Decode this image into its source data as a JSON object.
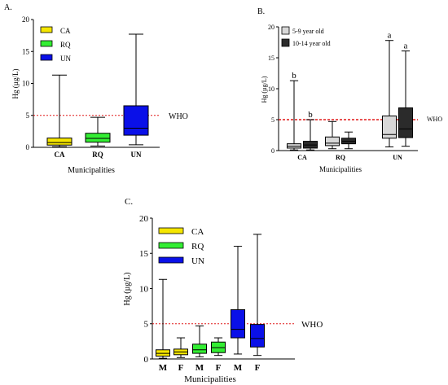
{
  "who_label": "WHO",
  "who_level": 5,
  "chart_data": [
    {
      "type": "box",
      "panel_label": "A.",
      "ylabel": "Hg (µg/L)",
      "xlabel": "Municipalities",
      "ylim": [
        0,
        20
      ],
      "yticks": [
        "0",
        "5",
        "10",
        "15",
        "20"
      ],
      "categories": [
        "CA",
        "RQ",
        "UN"
      ],
      "legend": [
        "CA",
        "RQ",
        "UN"
      ],
      "series": [
        {
          "color": "#f5e600",
          "boxes": [
            {
              "min": 0.1,
              "q1": 0.35,
              "median": 0.75,
              "q3": 1.45,
              "max": 11.3
            }
          ]
        },
        {
          "color": "#33ee33",
          "boxes": [
            {
              "min": 0.2,
              "q1": 0.8,
              "median": 1.4,
              "q3": 2.2,
              "max": 4.7
            }
          ]
        },
        {
          "color": "#0a10e8",
          "boxes": [
            {
              "min": 0.4,
              "q1": 1.9,
              "median": 3.0,
              "q3": 6.5,
              "max": 17.7
            }
          ]
        }
      ]
    },
    {
      "type": "box",
      "panel_label": "B.",
      "ylabel": "Hg (µg/L)",
      "xlabel": "Municipalities",
      "ylim": [
        0,
        20
      ],
      "yticks": [
        "0",
        "5",
        "10",
        "15",
        "20"
      ],
      "categories": [
        "CA",
        "RQ",
        "UN"
      ],
      "legend": [
        "5-9 year old",
        "10-14 year old"
      ],
      "series": [
        {
          "color": "#d8d8d8",
          "boxes": [
            {
              "min": 0.1,
              "q1": 0.4,
              "median": 0.7,
              "q3": 1.1,
              "max": 11.3,
              "letter": "b"
            },
            {
              "min": 0.3,
              "q1": 0.8,
              "median": 1.2,
              "q3": 2.2,
              "max": 4.7
            },
            {
              "min": 0.6,
              "q1": 2.0,
              "median": 2.6,
              "q3": 5.6,
              "max": 17.8,
              "letter": "a"
            }
          ]
        },
        {
          "color": "#2b2b2b",
          "boxes": [
            {
              "min": 0.1,
              "q1": 0.4,
              "median": 0.9,
              "q3": 1.5,
              "max": 5.0,
              "letter": "b"
            },
            {
              "min": 0.3,
              "q1": 1.1,
              "median": 1.5,
              "q3": 2.0,
              "max": 3.0
            },
            {
              "min": 0.7,
              "q1": 2.1,
              "median": 3.5,
              "q3": 6.9,
              "max": 16.1,
              "letter": "a"
            }
          ]
        }
      ]
    },
    {
      "type": "box",
      "panel_label": "C.",
      "ylabel": "Hg (µg/L)",
      "xlabel": "Municipalities",
      "ylim": [
        0,
        20
      ],
      "yticks": [
        "0",
        "5",
        "10",
        "15",
        "20"
      ],
      "categories": [
        "M",
        "F",
        "M",
        "F",
        "M",
        "F"
      ],
      "legend": [
        "CA",
        "RQ",
        "UN"
      ],
      "series": [
        {
          "color": "#f5e600",
          "boxes": [
            {
              "min": 0.1,
              "q1": 0.4,
              "median": 0.8,
              "q3": 1.3,
              "max": 11.3
            },
            {
              "min": 0.2,
              "q1": 0.6,
              "median": 1.0,
              "q3": 1.4,
              "max": 3.0
            }
          ]
        },
        {
          "color": "#33ee33",
          "boxes": [
            {
              "min": 0.3,
              "q1": 0.8,
              "median": 1.3,
              "q3": 2.1,
              "max": 4.7
            },
            {
              "min": 0.5,
              "q1": 0.9,
              "median": 1.6,
              "q3": 2.4,
              "max": 3.0
            }
          ]
        },
        {
          "color": "#0a10e8",
          "boxes": [
            {
              "min": 0.7,
              "q1": 3.0,
              "median": 4.2,
              "q3": 7.0,
              "max": 16.0
            },
            {
              "min": 0.5,
              "q1": 1.7,
              "median": 2.9,
              "q3": 4.9,
              "max": 17.7
            }
          ]
        }
      ]
    }
  ]
}
